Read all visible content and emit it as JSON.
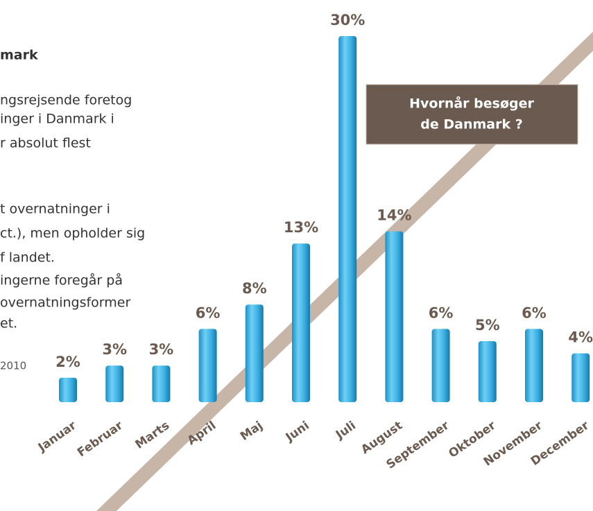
{
  "heading": "mark",
  "text_lines": [
    "ngsrejsende foretog",
    "inger i Danmark i",
    "r absolut flest",
    "t overnatninger i",
    "ct.), men opholder sig",
    "f landet.",
    "ingerne foregår på",
    "overnatningsformer",
    "et."
  ],
  "source": "2010",
  "chart_data": {
    "type": "bar",
    "title": [
      "Hvornår besøger",
      "de Danmark ?"
    ],
    "categories": [
      "Januar",
      "Februar",
      "Marts",
      "April",
      "Maj",
      "Juni",
      "Juli",
      "August",
      "September",
      "Oktober",
      "November",
      "December"
    ],
    "values": [
      2,
      3,
      3,
      6,
      8,
      13,
      30,
      14,
      6,
      5,
      6,
      4
    ],
    "value_labels": [
      "2%",
      "3%",
      "3%",
      "6%",
      "8%",
      "13%",
      "30%",
      "14%",
      "6%",
      "5%",
      "6%",
      "4%"
    ],
    "color": "#3aaee0"
  }
}
